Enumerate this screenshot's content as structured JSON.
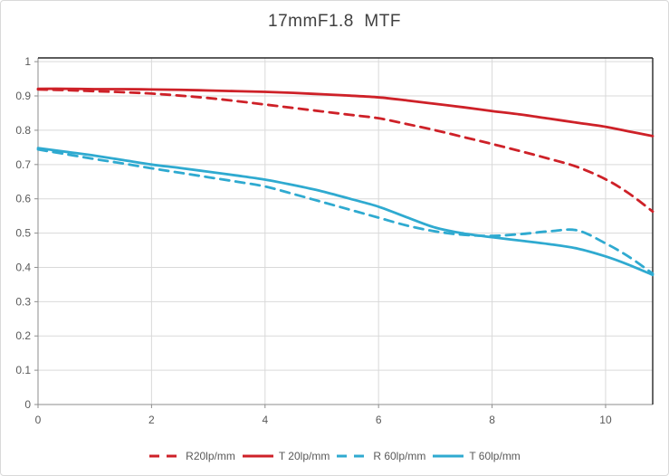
{
  "header": {
    "title": "17mmF1.8  MTF"
  },
  "style": {
    "background": "#ffffff",
    "frame_border": "#d9d9d9",
    "grid_color": "#d9d9d9",
    "axis_line_color": "#8e8e8e",
    "plot_border_color": "#262626",
    "axis_text_color": "#595959",
    "title_color": "#404040",
    "red": "#ce2128",
    "blue": "#2faad0"
  },
  "chart_data": {
    "type": "line",
    "title": "17mmF1.8  MTF",
    "xlabel": "",
    "ylabel": "",
    "xlim": [
      0,
      10.83
    ],
    "ylim": [
      0,
      1.011
    ],
    "grid": true,
    "legend_position": "bottom",
    "x_ticks": {
      "values": [
        0,
        2,
        4,
        6,
        8,
        10
      ],
      "labels": [
        "0",
        "2",
        "4",
        "6",
        "8",
        "10"
      ]
    },
    "y_ticks": {
      "values": [
        0,
        0.1,
        0.2,
        0.3,
        0.4,
        0.5,
        0.6,
        0.7,
        0.8,
        0.9,
        1
      ],
      "labels": [
        "0",
        "0.1",
        "0.2",
        "0.3",
        "0.4",
        "0.5",
        "0.6",
        "0.7",
        "0.8",
        "0.9",
        "1"
      ]
    },
    "x": [
      0,
      0.5,
      1,
      1.5,
      2,
      2.5,
      3,
      3.5,
      4,
      4.5,
      5,
      5.5,
      6,
      6.5,
      7,
      7.5,
      8,
      8.5,
      9,
      9.5,
      10,
      10.4,
      10.83
    ],
    "series": [
      {
        "name": "R20lp/mm",
        "color": "#ce2128",
        "dashed": true,
        "values": [
          0.919,
          0.917,
          0.914,
          0.911,
          0.907,
          0.901,
          0.894,
          0.885,
          0.875,
          0.865,
          0.855,
          0.845,
          0.835,
          0.818,
          0.8,
          0.78,
          0.76,
          0.739,
          0.717,
          0.693,
          0.657,
          0.617,
          0.563
        ]
      },
      {
        "name": "T 20lp/mm",
        "color": "#ce2128",
        "dashed": false,
        "values": [
          0.921,
          0.921,
          0.92,
          0.92,
          0.919,
          0.918,
          0.916,
          0.914,
          0.912,
          0.909,
          0.905,
          0.901,
          0.896,
          0.887,
          0.877,
          0.867,
          0.856,
          0.846,
          0.834,
          0.822,
          0.81,
          0.797,
          0.783
        ]
      },
      {
        "name": "R 60lp/mm",
        "color": "#2faad0",
        "dashed": true,
        "values": [
          0.744,
          0.73,
          0.716,
          0.703,
          0.689,
          0.676,
          0.663,
          0.65,
          0.636,
          0.614,
          0.591,
          0.568,
          0.545,
          0.522,
          0.505,
          0.495,
          0.492,
          0.497,
          0.505,
          0.508,
          0.47,
          0.432,
          0.382
        ]
      },
      {
        "name": "T 60lp/mm",
        "color": "#2faad0",
        "dashed": false,
        "values": [
          0.748,
          0.737,
          0.726,
          0.713,
          0.7,
          0.69,
          0.679,
          0.668,
          0.656,
          0.64,
          0.622,
          0.6,
          0.577,
          0.546,
          0.516,
          0.499,
          0.488,
          0.478,
          0.468,
          0.455,
          0.432,
          0.408,
          0.378
        ]
      }
    ]
  }
}
